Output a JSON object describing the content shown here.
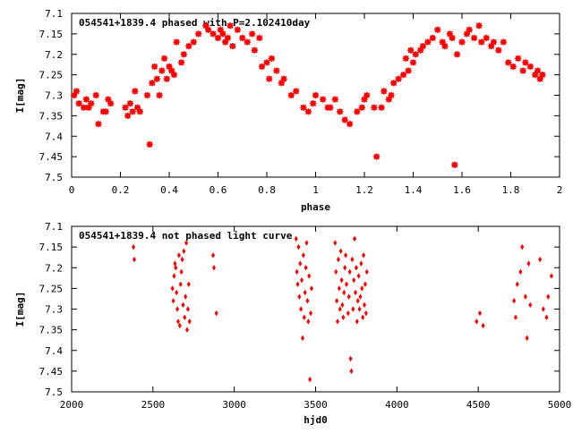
{
  "chart_data": [
    {
      "type": "scatter",
      "title": "054541+1839.4 phased with P=2.102410day",
      "xlabel": "phase",
      "ylabel": "I[mag]",
      "xlim": [
        0,
        2
      ],
      "ylim": [
        7.5,
        7.1
      ],
      "y_inverted": true,
      "xticks": [
        "0",
        "0.2",
        "0.4",
        "0.6",
        "0.8",
        "1",
        "1.2",
        "1.4",
        "1.6",
        "1.8",
        "2"
      ],
      "yticks": [
        "7.1",
        "7.15",
        "7.2",
        "7.25",
        "7.3",
        "7.35",
        "7.4",
        "7.45",
        "7.5"
      ],
      "marker_color": "#ff0000",
      "series": [
        {
          "x": [
            0.01,
            0.02,
            0.03,
            0.05,
            0.06,
            0.07,
            0.08,
            0.1,
            0.11,
            0.13,
            0.14,
            0.15,
            0.16,
            0.22,
            0.23,
            0.24,
            0.25,
            0.26,
            0.27,
            0.28,
            0.31,
            0.32,
            0.33,
            0.34,
            0.35,
            0.36,
            0.37,
            0.38,
            0.39,
            0.4,
            0.41,
            0.42,
            0.43,
            0.45,
            0.46,
            0.48,
            0.5,
            0.52,
            0.55,
            0.56,
            0.58,
            0.6,
            0.61,
            0.62,
            0.63,
            0.64,
            0.65,
            0.66,
            0.68,
            0.7,
            0.72,
            0.74,
            0.75,
            0.77,
            0.78,
            0.8,
            0.81,
            0.82,
            0.84,
            0.86,
            0.87,
            0.9,
            0.92,
            0.95,
            0.97,
            0.99,
            1.0,
            1.03,
            1.05,
            1.06,
            1.08,
            1.1,
            1.12,
            1.14,
            1.17,
            1.19,
            1.2,
            1.21,
            1.24,
            1.25,
            1.27,
            1.28,
            1.3,
            1.31,
            1.32,
            1.34,
            1.36,
            1.37,
            1.38,
            1.39,
            1.4,
            1.41,
            1.43,
            1.44,
            1.46,
            1.48,
            1.5,
            1.52,
            1.53,
            1.55,
            1.56,
            1.57,
            1.58,
            1.6,
            1.62,
            1.63,
            1.65,
            1.67,
            1.68,
            1.7,
            1.72,
            1.73,
            1.75,
            1.77,
            1.79,
            1.81,
            1.83,
            1.85,
            1.86,
            1.88,
            1.9,
            1.91,
            1.92,
            1.93
          ],
          "y": [
            7.3,
            7.29,
            7.32,
            7.33,
            7.31,
            7.33,
            7.32,
            7.3,
            7.37,
            7.34,
            7.34,
            7.31,
            7.32,
            7.33,
            7.35,
            7.32,
            7.34,
            7.29,
            7.33,
            7.34,
            7.3,
            7.42,
            7.27,
            7.23,
            7.26,
            7.3,
            7.24,
            7.21,
            7.26,
            7.23,
            7.24,
            7.25,
            7.17,
            7.22,
            7.2,
            7.18,
            7.17,
            7.15,
            7.13,
            7.14,
            7.15,
            7.16,
            7.14,
            7.15,
            7.17,
            7.16,
            7.13,
            7.18,
            7.14,
            7.16,
            7.17,
            7.15,
            7.19,
            7.16,
            7.23,
            7.22,
            7.26,
            7.21,
            7.24,
            7.27,
            7.26,
            7.3,
            7.29,
            7.33,
            7.34,
            7.32,
            7.3,
            7.31,
            7.33,
            7.33,
            7.31,
            7.34,
            7.36,
            7.37,
            7.34,
            7.33,
            7.31,
            7.3,
            7.33,
            7.45,
            7.33,
            7.29,
            7.31,
            7.3,
            7.27,
            7.26,
            7.25,
            7.21,
            7.24,
            7.19,
            7.22,
            7.2,
            7.19,
            7.18,
            7.17,
            7.16,
            7.14,
            7.17,
            7.18,
            7.15,
            7.16,
            7.47,
            7.2,
            7.17,
            7.15,
            7.14,
            7.16,
            7.13,
            7.17,
            7.16,
            7.18,
            7.17,
            7.19,
            7.17,
            7.22,
            7.23,
            7.21,
            7.24,
            7.22,
            7.23,
            7.25,
            7.24,
            7.26,
            7.25
          ]
        }
      ]
    },
    {
      "type": "scatter",
      "title": "054541+1839.4 not phased light curve",
      "xlabel": "hjd0",
      "ylabel": "I[mag]",
      "xlim": [
        2000,
        5000
      ],
      "ylim": [
        7.5,
        7.1
      ],
      "y_inverted": true,
      "xticks": [
        "2000",
        "2500",
        "3000",
        "3500",
        "4000",
        "4500",
        "5000"
      ],
      "yticks": [
        "7.1",
        "7.15",
        "7.2",
        "7.25",
        "7.3",
        "7.35",
        "7.4",
        "7.45",
        "7.5"
      ],
      "marker_color": "#ff0000",
      "series": [
        {
          "x": [
            2380,
            2385,
            2620,
            2625,
            2630,
            2635,
            2640,
            2645,
            2650,
            2655,
            2660,
            2665,
            2670,
            2675,
            2680,
            2685,
            2690,
            2695,
            2700,
            2705,
            2710,
            2715,
            2720,
            2725,
            2870,
            2875,
            2890,
            3380,
            3385,
            3390,
            3395,
            3400,
            3405,
            3410,
            3415,
            3420,
            3425,
            3430,
            3435,
            3440,
            3445,
            3450,
            3455,
            3460,
            3465,
            3470,
            3475,
            3620,
            3625,
            3630,
            3635,
            3640,
            3645,
            3650,
            3655,
            3660,
            3665,
            3670,
            3675,
            3680,
            3685,
            3690,
            3700,
            3705,
            3710,
            3715,
            3720,
            3725,
            3730,
            3735,
            3740,
            3745,
            3750,
            3755,
            3760,
            3765,
            3770,
            3775,
            3780,
            3785,
            3790,
            3795,
            3800,
            3805,
            3810,
            3815,
            4490,
            4510,
            4530,
            4720,
            4730,
            4740,
            4760,
            4770,
            4790,
            4800,
            4810,
            4820,
            4880,
            4900,
            4920,
            4930,
            4950
          ],
          "y": [
            7.15,
            7.18,
            7.25,
            7.28,
            7.22,
            7.19,
            7.2,
            7.26,
            7.3,
            7.33,
            7.17,
            7.34,
            7.24,
            7.21,
            7.18,
            7.29,
            7.16,
            7.32,
            7.27,
            7.14,
            7.35,
            7.3,
            7.24,
            7.33,
            7.17,
            7.2,
            7.31,
            7.13,
            7.21,
            7.24,
            7.15,
            7.27,
            7.19,
            7.3,
            7.23,
            7.37,
            7.17,
            7.32,
            7.26,
            7.2,
            7.14,
            7.28,
            7.33,
            7.22,
            7.47,
            7.31,
            7.25,
            7.14,
            7.21,
            7.28,
            7.33,
            7.18,
            7.25,
            7.3,
            7.16,
            7.23,
            7.29,
            7.32,
            7.26,
            7.2,
            7.17,
            7.24,
            7.31,
            7.27,
            7.21,
            7.42,
            7.45,
            7.18,
            7.3,
            7.23,
            7.13,
            7.26,
            7.2,
            7.33,
            7.28,
            7.22,
            7.3,
            7.27,
            7.19,
            7.25,
            7.32,
            7.17,
            7.29,
            7.24,
            7.31,
            7.21,
            7.33,
            7.31,
            7.34,
            7.28,
            7.32,
            7.24,
            7.21,
            7.15,
            7.27,
            7.37,
            7.19,
            7.29,
            7.18,
            7.3,
            7.32,
            7.27,
            7.22
          ]
        }
      ]
    }
  ]
}
